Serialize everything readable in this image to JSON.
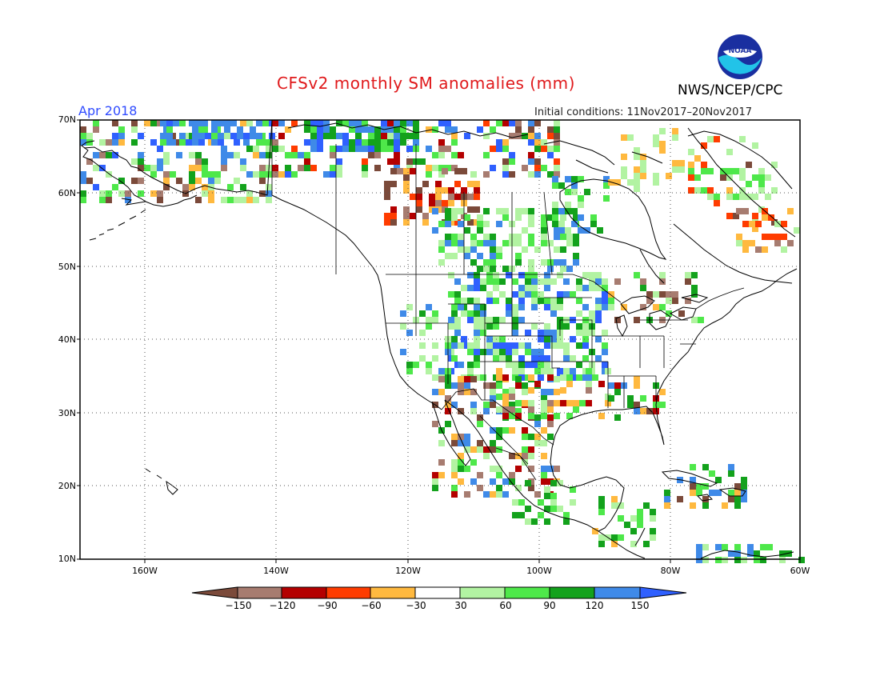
{
  "header": {
    "title": "CFSv2 monthly SM anomalies (mm)",
    "valid_month": "Apr 2018",
    "initial_conditions": "Initial conditions: 11Nov2017–20Nov2017",
    "agency": "NWS/NCEP/CPC",
    "logo_text": "NOAA"
  },
  "axes": {
    "lat_labels": [
      "70N",
      "60N",
      "50N",
      "40N",
      "30N",
      "20N",
      "10N"
    ],
    "lon_labels": [
      "160W",
      "140W",
      "120W",
      "100W",
      "80W",
      "60W"
    ]
  },
  "legend": {
    "labels": [
      "−150",
      "−120",
      "−90",
      "−60",
      "−30",
      "30",
      "60",
      "90",
      "120",
      "150"
    ],
    "colors": [
      "#7b4a3a",
      "#a77c70",
      "#b40000",
      "#ff3c00",
      "#ffb93f",
      "#ffffff",
      "#b2f3a2",
      "#4ee84a",
      "#13a21c",
      "#3f8ae8",
      "#2f60ff"
    ]
  },
  "colors": {
    "title": "#e0191b",
    "valid_month": "#2f4bff",
    "coast": "#000000"
  }
}
